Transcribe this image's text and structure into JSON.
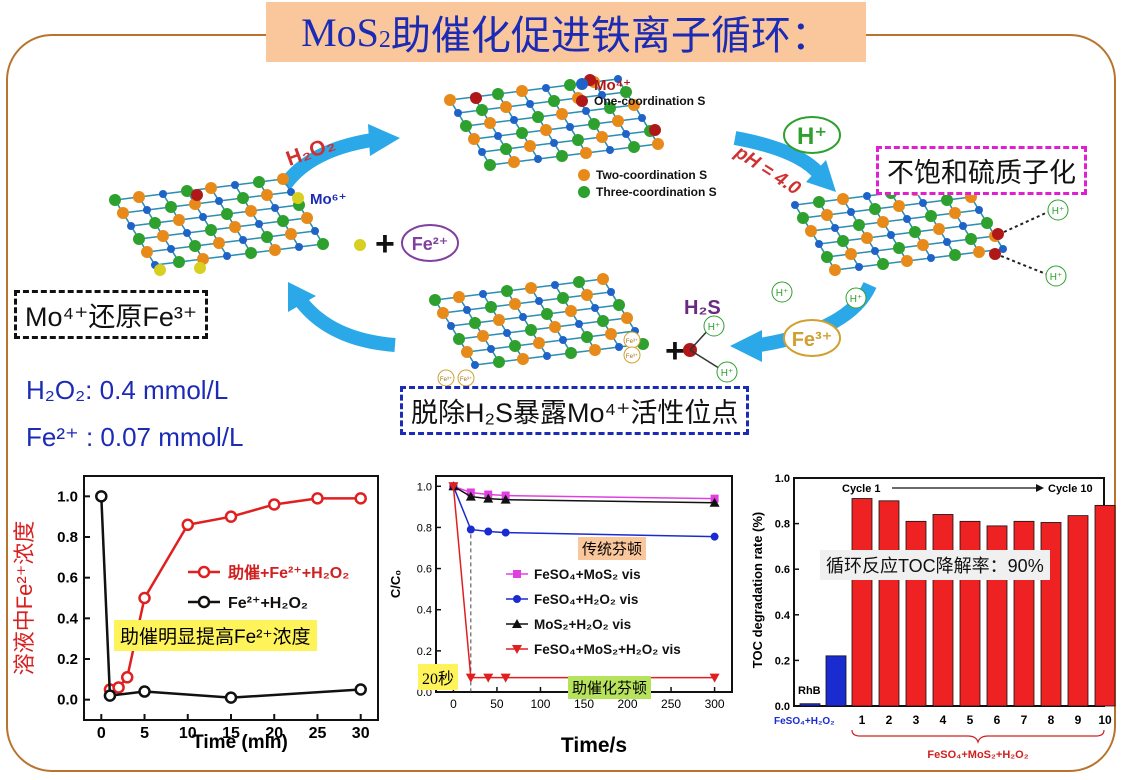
{
  "title": {
    "main": "MoS",
    "sub": "2",
    "rest": "助催化促进铁离子循环："
  },
  "diagram": {
    "h2o2_label": "H₂O₂",
    "ph_label": "pH = 4.0",
    "mo6_label": "Mo⁶⁺",
    "fe2_badge": "Fe²⁺",
    "fe3_badge": "Fe³⁺",
    "hplus_badge": "H⁺",
    "h2s_label": "H₂S",
    "hplus_small": "H⁺",
    "fe_small": "Fe³⁺",
    "plus": "+",
    "legend": [
      {
        "label": "Mo⁴⁺",
        "color": "#1f63c8"
      },
      {
        "label": "One-coordination S",
        "color": "#b01818"
      },
      {
        "label": "Two-coordination S",
        "color": "#e88a1a"
      },
      {
        "label": "Three-coordination S",
        "color": "#2ea02e"
      }
    ],
    "box_reduce": "Mo⁴⁺还原Fe³⁺",
    "box_protonate": "不饱和硫质子化",
    "box_remove": "脱除H₂S暴露Mo⁴⁺活性位点"
  },
  "conditions": {
    "h2o2": "H₂O₂: 0.4 mmol/L",
    "fe2": "Fe²⁺ : 0.07 mmol/L"
  },
  "chart_data": [
    {
      "type": "line",
      "xlabel": "Time (min)",
      "ylabel": "溶液中Fe²⁺浓度",
      "xlim": [
        -2,
        32
      ],
      "ylim": [
        -0.1,
        1.1
      ],
      "xticks": [
        0,
        5,
        10,
        15,
        20,
        25,
        30
      ],
      "yticks": [
        0.0,
        0.2,
        0.4,
        0.6,
        0.8,
        1.0
      ],
      "ytick_labels": [
        "0.0",
        "0.2",
        "0.4",
        "0.6",
        "0.8",
        "1.0"
      ],
      "series": [
        {
          "name": "助催+Fe²⁺+H₂O₂",
          "color": "#e02020",
          "x": [
            1,
            2,
            3,
            5,
            10,
            15,
            20,
            25,
            30
          ],
          "y": [
            0.05,
            0.06,
            0.11,
            0.5,
            0.86,
            0.9,
            0.96,
            0.99,
            0.99
          ]
        },
        {
          "name": "Fe²⁺+H₂O₂",
          "color": "#111111",
          "x": [
            0,
            1,
            5,
            15,
            30
          ],
          "y": [
            1.0,
            0.02,
            0.04,
            0.01,
            0.05
          ]
        }
      ],
      "annotation": "助催明显提高Fe²⁺浓度"
    },
    {
      "type": "line",
      "xlabel": "Time/s",
      "ylabel": "C/C₀",
      "xlim": [
        -20,
        320
      ],
      "ylim": [
        0,
        1.05
      ],
      "xticks": [
        0,
        50,
        100,
        150,
        200,
        250,
        300
      ],
      "yticks": [
        0.0,
        0.2,
        0.4,
        0.6,
        0.8,
        1.0
      ],
      "ytick_labels": [
        "0.0",
        "0.2",
        "0.4",
        "0.6",
        "0.8",
        "1.0"
      ],
      "series": [
        {
          "name": "FeSO₄+MoS₂ vis",
          "color": "#e040e0",
          "marker": "square",
          "x": [
            0,
            20,
            40,
            60,
            300
          ],
          "y": [
            1.0,
            0.97,
            0.96,
            0.955,
            0.94
          ]
        },
        {
          "name": "FeSO₄+H₂O₂ vis",
          "color": "#1a2bd0",
          "marker": "circle",
          "x": [
            0,
            20,
            40,
            60,
            300
          ],
          "y": [
            1.0,
            0.79,
            0.78,
            0.775,
            0.755
          ]
        },
        {
          "name": "MoS₂+H₂O₂ vis",
          "color": "#111111",
          "marker": "triangle",
          "x": [
            0,
            20,
            40,
            60,
            300
          ],
          "y": [
            1.0,
            0.95,
            0.94,
            0.935,
            0.92
          ]
        },
        {
          "name": "FeSO₄+MoS₂+H₂O₂ vis",
          "color": "#e02020",
          "marker": "triangle-down",
          "x": [
            0,
            20,
            40,
            60,
            300
          ],
          "y": [
            1.0,
            0.07,
            0.07,
            0.07,
            0.07
          ]
        }
      ],
      "annotations": [
        "传统芬顿",
        "助催化芬顿",
        "20秒"
      ]
    },
    {
      "type": "bar",
      "ylabel": "TOC degradation rate (%)",
      "ylim": [
        0,
        1.0
      ],
      "yticks": [
        0.0,
        0.2,
        0.4,
        0.6,
        0.8,
        1.0
      ],
      "ytick_labels": [
        "0.0",
        "0.2",
        "0.4",
        "0.6",
        "0.8",
        "1.0"
      ],
      "categories": [
        "RhB",
        "FeSO₄+H₂O₂",
        "1",
        "2",
        "3",
        "4",
        "5",
        "6",
        "7",
        "8",
        "9",
        "10"
      ],
      "values": [
        0.01,
        0.22,
        0.91,
        0.9,
        0.81,
        0.84,
        0.81,
        0.79,
        0.81,
        0.805,
        0.835,
        0.88
      ],
      "colors": [
        "#1a2bd0",
        "#1a2bd0",
        "#ee2222",
        "#ee2222",
        "#ee2222",
        "#ee2222",
        "#ee2222",
        "#ee2222",
        "#ee2222",
        "#ee2222",
        "#ee2222",
        "#ee2222"
      ],
      "group_label": "FeSO₄+MoS₂+H₂O₂",
      "cycle_start": "Cycle 1",
      "cycle_end": "Cycle 10",
      "annotation": "循环反应TOC降解率：90%"
    }
  ]
}
